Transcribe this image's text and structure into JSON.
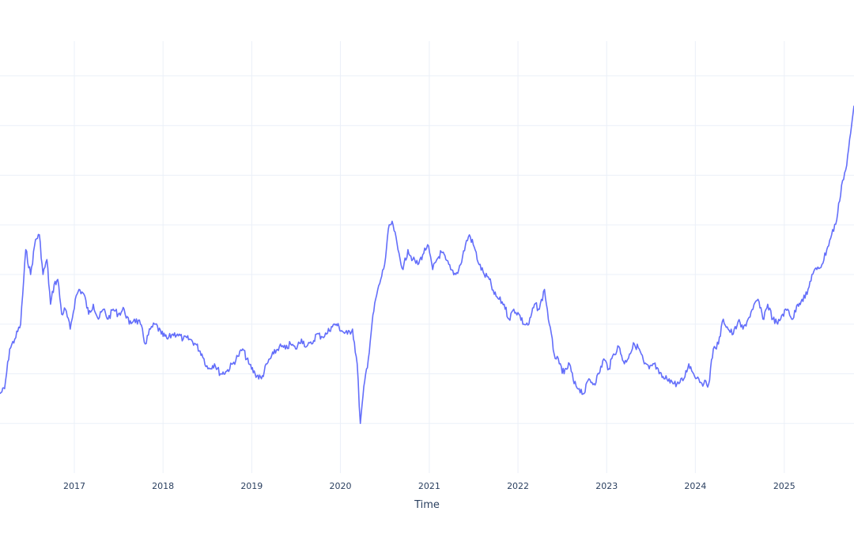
{
  "chart_data": {
    "type": "line",
    "title": "",
    "xlabel": "Time",
    "ylabel": "",
    "x_ticks": [
      "2017",
      "2018",
      "2019",
      "2020",
      "2021",
      "2022",
      "2023",
      "2024",
      "2025"
    ],
    "xlim": [
      "2016-03-01",
      "2025-10-15"
    ],
    "ylim": [
      0,
      8.7
    ],
    "y_grid": [
      1,
      2,
      3,
      4,
      5,
      6,
      7,
      8
    ],
    "grid": true,
    "legend": "none",
    "colors": {
      "line": "#636efa",
      "grid": "#ebf0f8",
      "text": "#2a3f5f"
    },
    "series": [
      {
        "name": "",
        "x": [
          "2016-03-01",
          "2016-03-20",
          "2016-04-10",
          "2016-05-01",
          "2016-05-25",
          "2016-06-15",
          "2016-07-05",
          "2016-07-25",
          "2016-08-10",
          "2016-08-25",
          "2016-09-10",
          "2016-09-25",
          "2016-10-10",
          "2016-10-25",
          "2016-11-10",
          "2016-11-25",
          "2016-12-15",
          "2017-01-05",
          "2017-01-20",
          "2017-02-10",
          "2017-03-01",
          "2017-03-20",
          "2017-04-10",
          "2017-05-01",
          "2017-05-20",
          "2017-06-10",
          "2017-07-01",
          "2017-07-25",
          "2017-08-15",
          "2017-09-05",
          "2017-09-30",
          "2017-10-20",
          "2017-11-10",
          "2017-12-01",
          "2017-12-25",
          "2018-01-20",
          "2018-02-10",
          "2018-03-01",
          "2018-03-25",
          "2018-04-20",
          "2018-05-15",
          "2018-06-10",
          "2018-07-05",
          "2018-08-01",
          "2018-08-25",
          "2018-09-20",
          "2018-10-15",
          "2018-11-05",
          "2018-11-25",
          "2018-12-20",
          "2019-01-15",
          "2019-02-10",
          "2019-03-05",
          "2019-04-01",
          "2019-04-25",
          "2019-05-20",
          "2019-06-10",
          "2019-07-01",
          "2019-07-25",
          "2019-08-15",
          "2019-09-05",
          "2019-09-25",
          "2019-10-15",
          "2019-11-05",
          "2019-11-25",
          "2019-12-15",
          "2020-01-10",
          "2020-01-30",
          "2020-02-20",
          "2020-03-10",
          "2020-03-23",
          "2020-04-10",
          "2020-04-25",
          "2020-05-10",
          "2020-05-25",
          "2020-06-15",
          "2020-07-01",
          "2020-07-20",
          "2020-08-05",
          "2020-08-25",
          "2020-09-15",
          "2020-10-05",
          "2020-10-25",
          "2020-11-15",
          "2020-12-05",
          "2020-12-25",
          "2021-01-15",
          "2021-02-01",
          "2021-02-20",
          "2021-03-10",
          "2021-03-30",
          "2021-04-20",
          "2021-05-10",
          "2021-05-30",
          "2021-06-15",
          "2021-07-05",
          "2021-07-25",
          "2021-08-15",
          "2021-09-05",
          "2021-09-25",
          "2021-10-15",
          "2021-11-05",
          "2021-11-25",
          "2021-12-15",
          "2022-01-05",
          "2022-01-25",
          "2022-02-15",
          "2022-03-10",
          "2022-03-30",
          "2022-04-20",
          "2022-05-10",
          "2022-05-30",
          "2022-06-20",
          "2022-07-10",
          "2022-08-01",
          "2022-08-20",
          "2022-09-10",
          "2022-09-30",
          "2022-10-20",
          "2022-11-10",
          "2022-11-30",
          "2022-12-20",
          "2023-01-10",
          "2023-01-30",
          "2023-02-20",
          "2023-03-15",
          "2023-04-05",
          "2023-04-25",
          "2023-05-15",
          "2023-06-05",
          "2023-06-25",
          "2023-07-15",
          "2023-08-05",
          "2023-08-25",
          "2023-09-15",
          "2023-10-05",
          "2023-10-25",
          "2023-11-15",
          "2023-12-05",
          "2023-12-25",
          "2024-01-15",
          "2024-02-05",
          "2024-02-25",
          "2024-03-15",
          "2024-04-05",
          "2024-04-25",
          "2024-05-15",
          "2024-06-05",
          "2024-06-25",
          "2024-07-15",
          "2024-08-05",
          "2024-08-25",
          "2024-09-15",
          "2024-10-05",
          "2024-10-25",
          "2024-11-15",
          "2024-12-05",
          "2024-12-25",
          "2025-01-15",
          "2025-02-05",
          "2025-02-25",
          "2025-03-15",
          "2025-04-05",
          "2025-04-25",
          "2025-05-15",
          "2025-06-05",
          "2025-06-25",
          "2025-07-15",
          "2025-08-05",
          "2025-08-25",
          "2025-09-15",
          "2025-10-05",
          "2025-10-15"
        ],
        "y": [
          1.6,
          1.7,
          2.5,
          2.7,
          3.0,
          4.5,
          4.0,
          4.7,
          4.8,
          4.0,
          4.3,
          3.4,
          3.8,
          3.9,
          3.2,
          3.3,
          2.9,
          3.5,
          3.7,
          3.6,
          3.2,
          3.4,
          3.1,
          3.3,
          3.1,
          3.3,
          3.2,
          3.3,
          3.0,
          3.1,
          3.0,
          2.6,
          2.9,
          3.0,
          2.8,
          2.7,
          2.8,
          2.8,
          2.7,
          2.7,
          2.6,
          2.4,
          2.1,
          2.2,
          2.0,
          2.05,
          2.2,
          2.35,
          2.5,
          2.2,
          2.0,
          1.9,
          2.2,
          2.4,
          2.55,
          2.5,
          2.6,
          2.5,
          2.7,
          2.55,
          2.6,
          2.8,
          2.75,
          2.8,
          2.95,
          3.0,
          2.85,
          2.8,
          2.9,
          2.2,
          1.0,
          1.85,
          2.3,
          3.0,
          3.5,
          3.9,
          4.2,
          5.0,
          5.0,
          4.5,
          4.1,
          4.5,
          4.3,
          4.2,
          4.4,
          4.6,
          4.1,
          4.3,
          4.45,
          4.3,
          4.1,
          4.0,
          4.2,
          4.6,
          4.8,
          4.55,
          4.2,
          4.0,
          3.9,
          3.6,
          3.5,
          3.4,
          3.1,
          3.3,
          3.2,
          3.0,
          3.0,
          3.4,
          3.3,
          3.7,
          3.0,
          2.4,
          2.2,
          2.0,
          2.2,
          1.8,
          1.7,
          1.6,
          1.9,
          1.8,
          2.0,
          2.3,
          2.1,
          2.4,
          2.55,
          2.2,
          2.4,
          2.6,
          2.5,
          2.2,
          2.1,
          2.2,
          2.0,
          1.9,
          1.9,
          1.8,
          1.8,
          1.9,
          2.2,
          2.0,
          1.9,
          1.8,
          1.8,
          2.5,
          2.6,
          3.1,
          2.9,
          2.8,
          3.05,
          2.9,
          3.1,
          3.3,
          3.5,
          3.1,
          3.4,
          3.1,
          3.0,
          3.2,
          3.3,
          3.1,
          3.4,
          3.5,
          3.6,
          4.0,
          4.1,
          4.2,
          4.5,
          4.8,
          5.1,
          5.8,
          6.2,
          7.0,
          7.4
        ]
      }
    ]
  }
}
